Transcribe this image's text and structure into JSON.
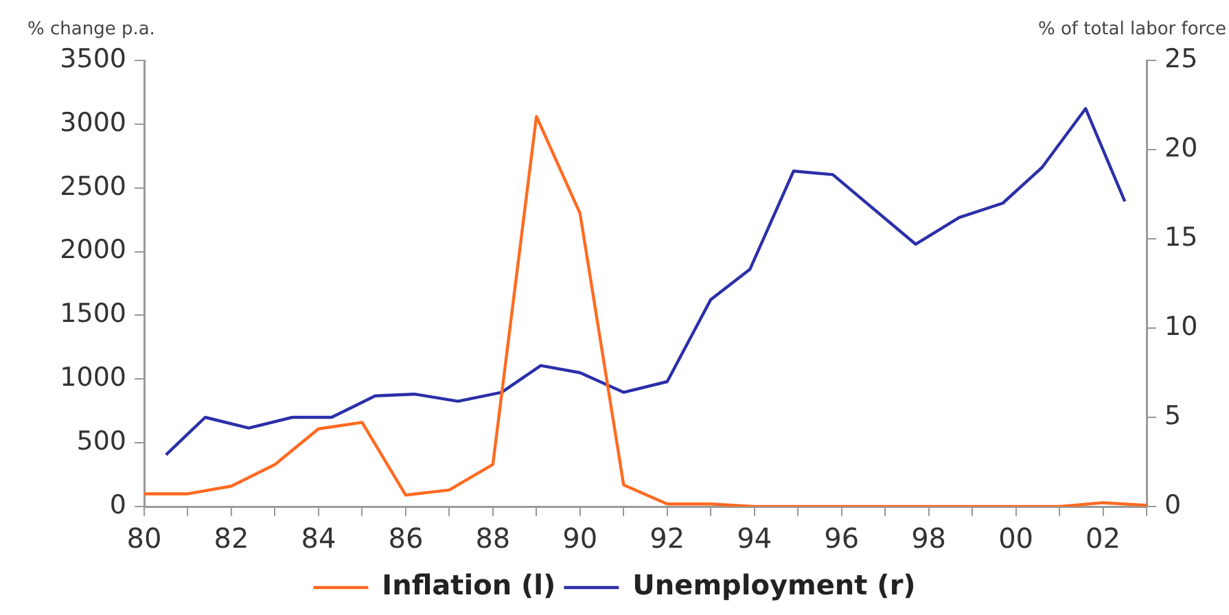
{
  "chart_data": {
    "type": "line",
    "ylabel": "% change p.a.",
    "y2label": "% of total labor force",
    "xlim": [
      1980,
      2003
    ],
    "xticks": [
      {
        "value": 1980,
        "label": "80"
      },
      {
        "value": 1981,
        "label": null
      },
      {
        "value": 1982,
        "label": "82"
      },
      {
        "value": 1983,
        "label": null
      },
      {
        "value": 1984,
        "label": "84"
      },
      {
        "value": 1985,
        "label": null
      },
      {
        "value": 1986,
        "label": "86"
      },
      {
        "value": 1987,
        "label": null
      },
      {
        "value": 1988,
        "label": "88"
      },
      {
        "value": 1989,
        "label": null
      },
      {
        "value": 1990,
        "label": "90"
      },
      {
        "value": 1991,
        "label": null
      },
      {
        "value": 1992,
        "label": "92"
      },
      {
        "value": 1993,
        "label": null
      },
      {
        "value": 1994,
        "label": "94"
      },
      {
        "value": 1995,
        "label": null
      },
      {
        "value": 1996,
        "label": "96"
      },
      {
        "value": 1997,
        "label": null
      },
      {
        "value": 1998,
        "label": "98"
      },
      {
        "value": 1999,
        "label": null
      },
      {
        "value": 2000,
        "label": "00"
      },
      {
        "value": 2001,
        "label": null
      },
      {
        "value": 2002,
        "label": "02"
      },
      {
        "value": 2003,
        "label": null
      }
    ],
    "ylim": [
      0,
      3500
    ],
    "yticks": [
      0,
      500,
      1000,
      1500,
      2000,
      2500,
      3000,
      3500
    ],
    "y2lim": [
      0,
      25
    ],
    "y2ticks": [
      0,
      5,
      10,
      15,
      20,
      25
    ],
    "grid": false,
    "legend": "bottom",
    "series": [
      {
        "name": "Inflation (l)",
        "color": "#ff6a21",
        "x": [
          1980,
          1981,
          1982,
          1983,
          1984,
          1985,
          1986,
          1987,
          1988,
          1989,
          1990,
          1991,
          1992,
          1993,
          1994,
          1995,
          1996,
          1997,
          1998,
          1999,
          2000,
          2001,
          2002,
          2003
        ],
        "values": [
          100,
          100,
          160,
          330,
          610,
          660,
          90,
          130,
          330,
          3060,
          2300,
          170,
          20,
          20,
          0,
          0,
          0,
          0,
          0,
          0,
          0,
          0,
          30,
          10
        ]
      },
      {
        "name": "Unemployment (r)",
        "color": "#2b2fa8",
        "axis": "y2",
        "x": [
          1980.5,
          1981.4,
          1982.4,
          1983.4,
          1984.3,
          1985.3,
          1986.2,
          1987.2,
          1988.2,
          1989.1,
          1990.0,
          1991.0,
          1992.0,
          1993.0,
          1993.9,
          1994.9,
          1995.8,
          1997.7,
          1998.7,
          1999.7,
          2000.6,
          2001.6,
          2002.5
        ],
        "values": [
          2.9,
          5.0,
          4.4,
          5.0,
          5.0,
          6.2,
          6.3,
          5.9,
          6.4,
          7.9,
          7.5,
          6.4,
          7.0,
          11.6,
          13.3,
          18.8,
          18.6,
          14.7,
          16.2,
          17.0,
          19.0,
          22.3,
          17.1
        ]
      }
    ]
  }
}
